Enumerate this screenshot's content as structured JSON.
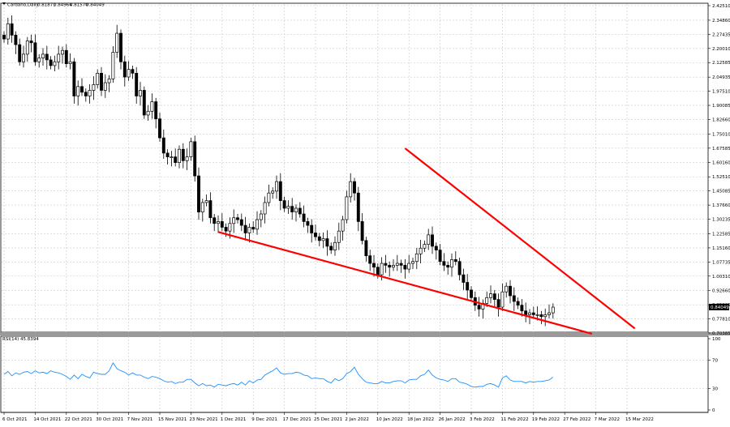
{
  "chart_data": [
    {
      "type": "candlestick",
      "header": {
        "symbol": "Cardano,Daily",
        "open": "0.81871",
        "high": "0.84964",
        "low": "0.81570",
        "close": "0.84049"
      },
      "current_price_label": "0.84049",
      "price_ticks": [
        "2.42510",
        "2.34860",
        "2.27435",
        "2.20010",
        "2.12585",
        "2.04935",
        "1.97510",
        "1.90085",
        "1.82660",
        "1.75010",
        "1.67585",
        "1.60160",
        "1.52510",
        "1.45085",
        "1.37660",
        "1.30235",
        "1.22585",
        "1.15160",
        "1.07735",
        "1.00310",
        "0.92660",
        "0.85235",
        "0.77810",
        "0.70385"
      ],
      "ylim": [
        0.70385,
        2.4251
      ],
      "date_ticks": [
        "6 Oct 2021",
        "14 Oct 2021",
        "22 Oct 2021",
        "30 Oct 2021",
        "7 Nov 2021",
        "15 Nov 2021",
        "23 Nov 2021",
        "1 Dec 2021",
        "9 Dec 2021",
        "17 Dec 2021",
        "25 Dec 2021",
        "2 Jan 2022",
        "10 Jan 2022",
        "18 Jan 2022",
        "26 Jan 2022",
        "3 Feb 2022",
        "11 Feb 2022",
        "19 Feb 2022",
        "27 Feb 2022",
        "7 Mar 2022",
        "15 Mar 2022"
      ],
      "grid": true,
      "colors": {
        "candle": "#000000",
        "trendline": "#ff0000",
        "rsi_line": "#1e90ff",
        "background": "#ffffff",
        "grid": "#c8c8c8"
      },
      "closes": [
        2.25,
        2.33,
        2.27,
        2.22,
        2.13,
        2.17,
        2.24,
        2.23,
        2.13,
        2.15,
        2.17,
        2.14,
        2.11,
        2.13,
        2.17,
        2.19,
        2.12,
        2.13,
        1.95,
        2.0,
        1.97,
        1.95,
        1.98,
        2.01,
        2.07,
        1.98,
        2.02,
        2.04,
        2.18,
        2.28,
        2.13,
        2.05,
        2.09,
        2.07,
        1.95,
        1.98,
        1.85,
        1.87,
        1.92,
        1.83,
        1.73,
        1.65,
        1.63,
        1.63,
        1.6,
        1.67,
        1.61,
        1.63,
        1.71,
        1.53,
        1.34,
        1.39,
        1.4,
        1.31,
        1.28,
        1.29,
        1.26,
        1.24,
        1.28,
        1.31,
        1.3,
        1.27,
        1.23,
        1.26,
        1.25,
        1.3,
        1.33,
        1.39,
        1.44,
        1.45,
        1.5,
        1.4,
        1.36,
        1.37,
        1.34,
        1.36,
        1.33,
        1.29,
        1.27,
        1.23,
        1.21,
        1.19,
        1.2,
        1.16,
        1.14,
        1.18,
        1.24,
        1.3,
        1.42,
        1.5,
        1.44,
        1.29,
        1.19,
        1.11,
        1.07,
        1.05,
        1.01,
        1.07,
        1.06,
        1.05,
        1.06,
        1.07,
        1.06,
        1.04,
        1.07,
        1.08,
        1.12,
        1.15,
        1.17,
        1.22,
        1.16,
        1.14,
        1.08,
        1.06,
        1.05,
        1.09,
        1.08,
        1.01,
        0.97,
        0.93,
        0.89,
        0.85,
        0.83,
        0.86,
        0.89,
        0.91,
        0.88,
        0.84,
        0.92,
        0.95,
        0.9,
        0.87,
        0.85,
        0.82,
        0.8,
        0.81,
        0.8,
        0.8,
        0.79,
        0.8,
        0.81,
        0.84
      ],
      "first_close_index_date": "6 Oct 2021",
      "trendlines": [
        {
          "name": "lower-support",
          "from": {
            "date": "30 Nov 2021",
            "price": 1.235
          },
          "to": {
            "date": "6 Mar 2022",
            "price": 0.7
          }
        },
        {
          "name": "upper-resistance",
          "from": {
            "date": "17 Jan 2022",
            "price": 1.675
          },
          "to": {
            "date": "17 Mar 2022",
            "price": 0.728
          }
        }
      ],
      "rsi": {
        "label": "RSI(14) 45.8394",
        "ticks": [
          "100",
          "70",
          "30",
          "0"
        ],
        "levels": [
          70,
          30
        ],
        "ylim": [
          0,
          100
        ],
        "values": [
          50,
          54,
          48,
          52,
          50,
          53,
          54,
          51,
          55,
          52,
          53,
          51,
          55,
          53,
          52,
          50,
          47,
          43,
          49,
          44,
          50,
          47,
          45,
          53,
          51,
          50,
          50,
          55,
          66,
          58,
          55,
          53,
          49,
          52,
          49,
          49,
          46,
          44,
          47,
          46,
          44,
          41,
          39,
          40,
          37,
          39,
          39,
          43,
          43,
          38,
          34,
          37,
          34,
          35,
          32,
          36,
          35,
          34,
          36,
          37,
          35,
          39,
          35,
          41,
          38,
          42,
          43,
          49,
          52,
          55,
          59,
          52,
          50,
          51,
          51,
          53,
          52,
          49,
          48,
          44,
          45,
          44,
          44,
          40,
          38,
          44,
          41,
          44,
          51,
          54,
          60,
          50,
          44,
          39,
          38,
          37,
          37,
          40,
          38,
          38,
          40,
          41,
          41,
          38,
          42,
          43,
          43,
          48,
          50,
          56,
          49,
          45,
          43,
          42,
          40,
          44,
          44,
          39,
          38,
          36,
          33,
          32,
          33,
          33,
          36,
          37,
          35,
          32,
          45,
          48,
          42,
          40,
          40,
          40,
          38,
          40,
          39,
          40,
          40,
          41,
          42,
          46
        ]
      }
    }
  ]
}
